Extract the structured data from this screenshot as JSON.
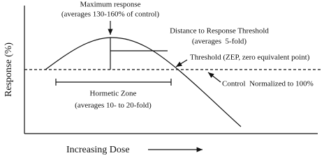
{
  "y_axis_label": "Response (%)",
  "x_axis_label": "Increasing Dose",
  "annotations": {
    "maximum": [
      "Maximum response",
      "(averages 130-160% of control)"
    ],
    "distance": [
      "Distance to Response Threshold",
      "(averages  5-fold)"
    ],
    "threshold": "Threshold (ZEP, zero equivalent point)",
    "control": "Control  Normalized to 100%",
    "hormetic": [
      "Hormetic Zone",
      "(averages 10- to 20-fold)"
    ]
  }
}
